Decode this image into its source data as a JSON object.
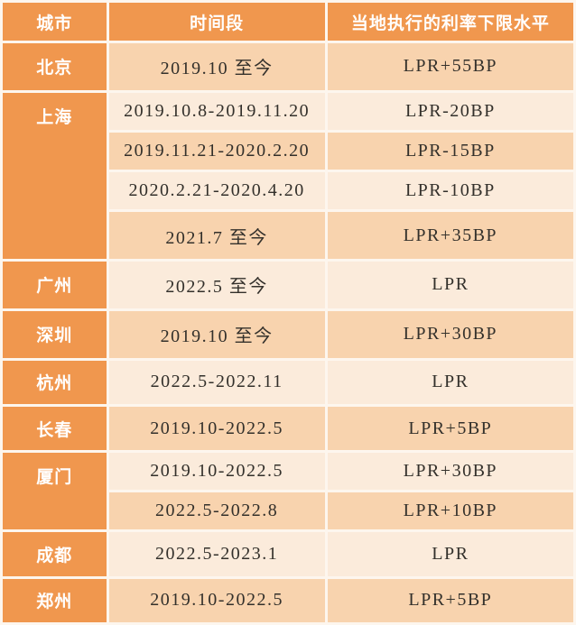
{
  "chart_data": {
    "type": "table",
    "columns": [
      "城市",
      "时间段",
      "当地执行的利率下限水平"
    ],
    "rows": [
      {
        "city": "北京",
        "city_rowspan": 1,
        "period": "2019.10 至今",
        "rate": "LPR+55BP",
        "shade": "dark"
      },
      {
        "city": "上海",
        "city_rowspan": 4,
        "period": "2019.10.8-2019.11.20",
        "rate": "LPR-20BP",
        "shade": "light"
      },
      {
        "city": "",
        "city_rowspan": 0,
        "period": "2019.11.21-2020.2.20",
        "rate": "LPR-15BP",
        "shade": "dark"
      },
      {
        "city": "",
        "city_rowspan": 0,
        "period": "2020.2.21-2020.4.20",
        "rate": "LPR-10BP",
        "shade": "light"
      },
      {
        "city": "",
        "city_rowspan": 0,
        "period": "2021.7 至今",
        "rate": "LPR+35BP",
        "shade": "dark"
      },
      {
        "city": "广州",
        "city_rowspan": 1,
        "period": "2022.5 至今",
        "rate": "LPR",
        "shade": "light"
      },
      {
        "city": "深圳",
        "city_rowspan": 1,
        "period": "2019.10 至今",
        "rate": "LPR+30BP",
        "shade": "dark"
      },
      {
        "city": "杭州",
        "city_rowspan": 1,
        "period": "2022.5-2022.11",
        "rate": "LPR",
        "shade": "light"
      },
      {
        "city": "长春",
        "city_rowspan": 1,
        "period": "2019.10-2022.5",
        "rate": "LPR+5BP",
        "shade": "dark"
      },
      {
        "city": "厦门",
        "city_rowspan": 2,
        "period": "2019.10-2022.5",
        "rate": "LPR+30BP",
        "shade": "light"
      },
      {
        "city": "",
        "city_rowspan": 0,
        "period": "2022.5-2022.8",
        "rate": "LPR+10BP",
        "shade": "dark"
      },
      {
        "city": "成都",
        "city_rowspan": 1,
        "period": "2022.5-2023.1",
        "rate": "LPR",
        "shade": "light"
      },
      {
        "city": "",
        "city_rowspan": 1,
        "period": "2019.10-2022.5",
        "rate": "LPR+5BP",
        "shade": "dark",
        "city_last": "郑州"
      }
    ]
  },
  "colors": {
    "accent": "#F0974E",
    "row_dark": "#F8D3AE",
    "row_light": "#FBEBDB",
    "grid": "#FDF6EE",
    "text_dark": "#33302B",
    "text_light": "#FFFFFF"
  }
}
